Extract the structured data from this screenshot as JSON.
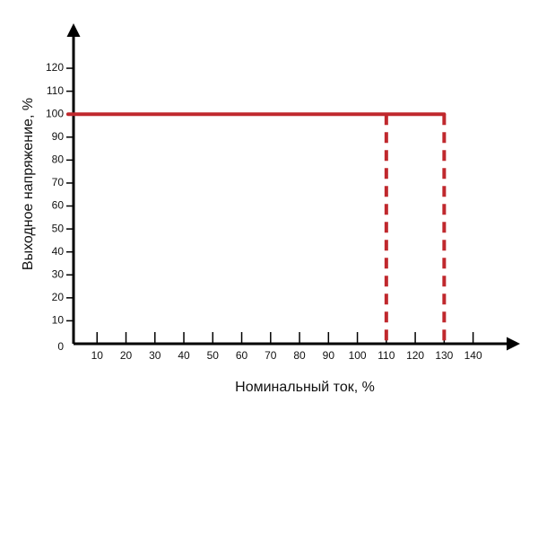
{
  "chart_data": {
    "type": "line",
    "x_label": "Номинальный ток, %",
    "y_label": "Выходное напряжение, %",
    "xlim": [
      0,
      155
    ],
    "ylim": [
      0,
      138
    ],
    "xticks": [
      10,
      20,
      30,
      40,
      50,
      60,
      70,
      80,
      90,
      100,
      110,
      120,
      130,
      140
    ],
    "yticks": [
      0,
      10,
      20,
      30,
      40,
      50,
      60,
      70,
      80,
      90,
      100,
      110,
      120
    ],
    "series": [
      {
        "color": "#c0282d",
        "dash": false,
        "x": [
          0,
          130
        ],
        "values": [
          100,
          100
        ]
      },
      {
        "color": "#c0282d",
        "dash": true,
        "x": [
          110,
          110
        ],
        "values": [
          100,
          0
        ]
      },
      {
        "color": "#c0282d",
        "dash": true,
        "x": [
          130,
          130
        ],
        "values": [
          100,
          0
        ]
      }
    ]
  }
}
